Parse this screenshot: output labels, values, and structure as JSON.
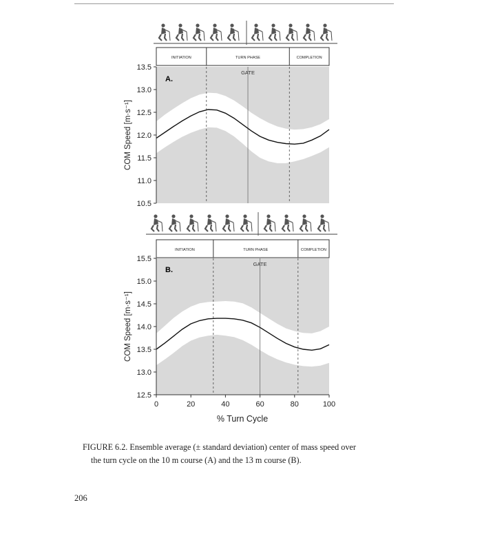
{
  "figure": {
    "caption_line1": "FIGURE 6.2.  Ensemble average (± standard deviation) center of mass speed over",
    "caption_line2": "the turn cycle on the 10 m course (A) and the 13 m course (B).",
    "page_number": "206"
  },
  "chart_data": [
    {
      "type": "line",
      "panel_label": "A.",
      "ylabel": "COM Speed [m·s⁻¹]",
      "xlabel": "",
      "xlim": [
        0,
        100
      ],
      "ylim": [
        10.5,
        13.5
      ],
      "yticks": [
        "13.5",
        "13.0",
        "12.5",
        "12.0",
        "11.5",
        "11.0",
        "10.5"
      ],
      "ytick_values": [
        13.5,
        13.0,
        12.5,
        12.0,
        11.5,
        11.0,
        10.5
      ],
      "xticks": [],
      "phases": [
        {
          "label": "INITIATION",
          "start": 0,
          "end": 29
        },
        {
          "label": "TURN PHASE",
          "start": 29,
          "end": 77
        },
        {
          "label": "COMPLETION",
          "start": 77,
          "end": 100
        }
      ],
      "gate": {
        "label": "GATE",
        "x": 53
      },
      "x": [
        0,
        5,
        10,
        15,
        20,
        25,
        30,
        35,
        40,
        45,
        50,
        55,
        60,
        65,
        70,
        75,
        80,
        85,
        90,
        95,
        100
      ],
      "series": [
        {
          "name": "mean",
          "values": [
            11.93,
            12.06,
            12.19,
            12.31,
            12.42,
            12.51,
            12.56,
            12.55,
            12.48,
            12.37,
            12.23,
            12.09,
            11.97,
            11.89,
            11.84,
            11.81,
            11.8,
            11.82,
            11.89,
            11.98,
            12.12
          ]
        },
        {
          "name": "upper SD",
          "values": [
            12.3,
            12.45,
            12.58,
            12.7,
            12.81,
            12.89,
            12.93,
            12.92,
            12.86,
            12.76,
            12.63,
            12.49,
            12.37,
            12.27,
            12.19,
            12.14,
            12.12,
            12.13,
            12.17,
            12.24,
            12.35
          ]
        },
        {
          "name": "lower SD",
          "values": [
            11.6,
            11.73,
            11.85,
            11.96,
            12.05,
            12.12,
            12.17,
            12.16,
            12.09,
            11.97,
            11.81,
            11.64,
            11.5,
            11.42,
            11.38,
            11.38,
            11.42,
            11.47,
            11.54,
            11.62,
            11.73
          ]
        }
      ]
    },
    {
      "type": "line",
      "panel_label": "B.",
      "ylabel": "COM Speed [m·s⁻¹]",
      "xlabel": "% Turn Cycle",
      "xlim": [
        0,
        100
      ],
      "ylim": [
        12.5,
        15.5
      ],
      "yticks": [
        "15.5",
        "15.0",
        "14.5",
        "14.0",
        "13.5",
        "13.0",
        "12.5"
      ],
      "ytick_values": [
        15.5,
        15.0,
        14.5,
        14.0,
        13.5,
        13.0,
        12.5
      ],
      "xticks": [
        "0",
        "20",
        "40",
        "60",
        "80",
        "100"
      ],
      "xtick_values": [
        0,
        20,
        40,
        60,
        80,
        100
      ],
      "phases": [
        {
          "label": "INITIATION",
          "start": 0,
          "end": 33
        },
        {
          "label": "TURN PHASE",
          "start": 33,
          "end": 82
        },
        {
          "label": "COMPLETION",
          "start": 82,
          "end": 100
        }
      ],
      "gate": {
        "label": "GATE",
        "x": 60
      },
      "x": [
        0,
        5,
        10,
        15,
        20,
        25,
        30,
        35,
        40,
        45,
        50,
        55,
        60,
        65,
        70,
        75,
        80,
        85,
        90,
        95,
        100
      ],
      "series": [
        {
          "name": "mean",
          "values": [
            13.5,
            13.64,
            13.79,
            13.94,
            14.06,
            14.13,
            14.17,
            14.18,
            14.18,
            14.17,
            14.14,
            14.08,
            13.98,
            13.86,
            13.74,
            13.63,
            13.55,
            13.5,
            13.48,
            13.51,
            13.6
          ]
        },
        {
          "name": "upper SD",
          "values": [
            13.85,
            14.02,
            14.19,
            14.33,
            14.44,
            14.51,
            14.54,
            14.55,
            14.56,
            14.55,
            14.51,
            14.42,
            14.3,
            14.18,
            14.06,
            13.96,
            13.9,
            13.86,
            13.85,
            13.9,
            14.0
          ]
        },
        {
          "name": "lower SD",
          "values": [
            13.15,
            13.28,
            13.42,
            13.57,
            13.69,
            13.76,
            13.8,
            13.82,
            13.8,
            13.77,
            13.7,
            13.6,
            13.48,
            13.37,
            13.28,
            13.21,
            13.16,
            13.13,
            13.12,
            13.14,
            13.2
          ]
        }
      ]
    }
  ]
}
